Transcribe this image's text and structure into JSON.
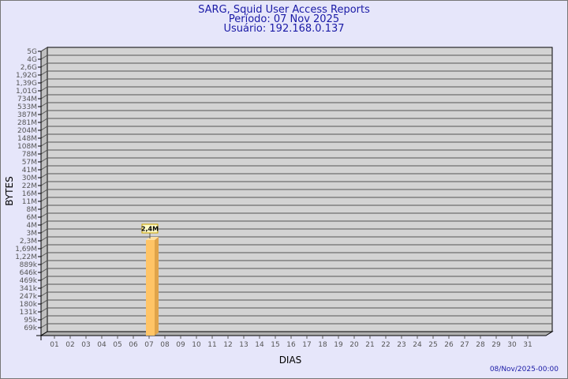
{
  "chart_data": {
    "type": "bar",
    "title": "SARG, Squid User Access Reports",
    "subtitle_lines": [
      "Período: 07 Nov 2025",
      "Usuário: 192.168.0.137"
    ],
    "xlabel": "DIAS",
    "ylabel": "BYTES",
    "y_scale": "log",
    "y_tick_labels": [
      "5G",
      "4G",
      "2,6G",
      "1,92G",
      "1,39G",
      "1,01G",
      "734M",
      "533M",
      "387M",
      "281M",
      "204M",
      "148M",
      "108M",
      "78M",
      "57M",
      "41M",
      "30M",
      "22M",
      "16M",
      "11M",
      "8M",
      "6M",
      "4M",
      "3M",
      "2,3M",
      "1,69M",
      "1,22M",
      "889k",
      "646k",
      "469k",
      "341k",
      "247k",
      "180k",
      "131k",
      "95k",
      "69k"
    ],
    "categories": [
      "01",
      "02",
      "03",
      "04",
      "05",
      "06",
      "07",
      "08",
      "09",
      "10",
      "11",
      "12",
      "13",
      "14",
      "15",
      "16",
      "17",
      "18",
      "19",
      "20",
      "21",
      "22",
      "23",
      "24",
      "25",
      "26",
      "27",
      "28",
      "29",
      "30",
      "31"
    ],
    "series": [
      {
        "values": [
          0,
          0,
          0,
          0,
          0,
          0,
          2.4,
          0,
          0,
          0,
          0,
          0,
          0,
          0,
          0,
          0,
          0,
          0,
          0,
          0,
          0,
          0,
          0,
          0,
          0,
          0,
          0,
          0,
          0,
          0,
          0
        ]
      }
    ],
    "value_unit": "M",
    "data_labels": {
      "07": "2,4M"
    },
    "grid": true,
    "colors": {
      "bar": "#ffc466",
      "bar_side": "#e0a44a",
      "wall": "#d3d3d3",
      "background": "#e6e6fa",
      "title": "#1a1aa6"
    },
    "timestamp": "08/Nov/2025-00:00"
  }
}
